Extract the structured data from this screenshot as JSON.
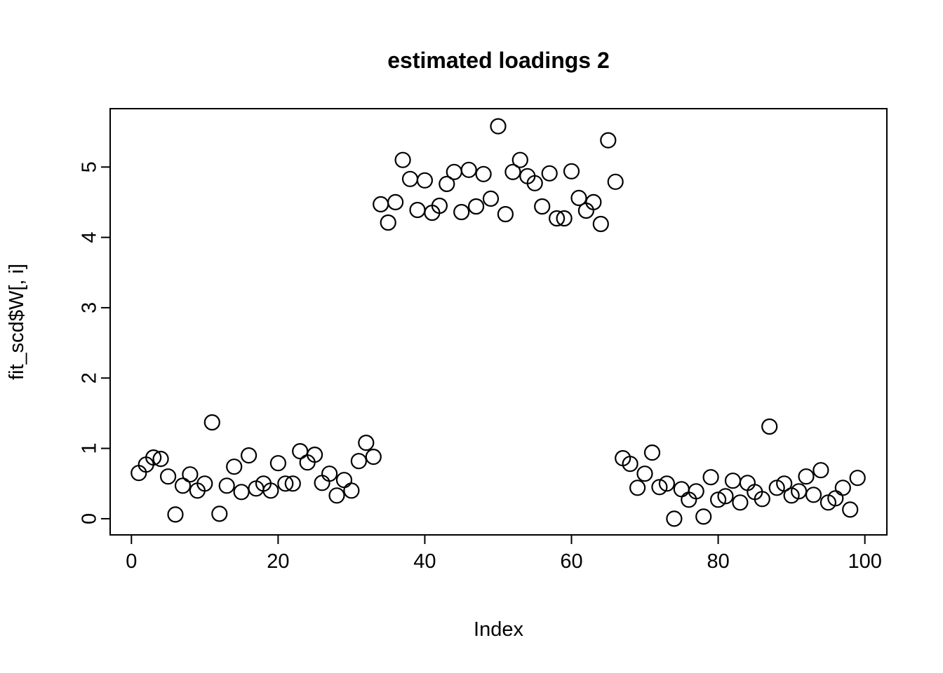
{
  "chart_data": {
    "type": "scatter",
    "title": "estimated loadings 2",
    "xlabel": "Index",
    "ylabel": "fit_scd$W[, i]",
    "marker": "open-circle",
    "marker_color": "#000000",
    "axis_color": "#000000",
    "background_color": "#ffffff",
    "grid": false,
    "legend": null,
    "x_ticks": [
      0,
      20,
      40,
      60,
      80,
      100
    ],
    "y_ticks": [
      0,
      1,
      2,
      3,
      4,
      5
    ],
    "xlim": [
      -2.9,
      103.0
    ],
    "ylim": [
      -0.23,
      5.83
    ],
    "x": [
      1,
      2,
      3,
      4,
      5,
      6,
      7,
      8,
      9,
      10,
      11,
      12,
      13,
      14,
      15,
      16,
      17,
      18,
      19,
      20,
      21,
      22,
      23,
      24,
      25,
      26,
      27,
      28,
      29,
      30,
      31,
      32,
      33,
      34,
      35,
      36,
      37,
      38,
      39,
      40,
      41,
      42,
      43,
      44,
      45,
      46,
      47,
      48,
      49,
      50,
      51,
      52,
      53,
      54,
      55,
      56,
      57,
      58,
      59,
      60,
      61,
      62,
      63,
      64,
      65,
      66,
      67,
      68,
      69,
      70,
      71,
      72,
      73,
      74,
      75,
      76,
      77,
      78,
      79,
      80,
      81,
      82,
      83,
      84,
      85,
      86,
      87,
      88,
      89,
      90,
      91,
      92,
      93,
      94,
      95,
      96,
      97,
      98,
      99
    ],
    "y": [
      0.65,
      0.77,
      0.87,
      0.85,
      0.6,
      0.06,
      0.47,
      0.63,
      0.4,
      0.5,
      1.37,
      0.07,
      0.47,
      0.74,
      0.38,
      0.9,
      0.43,
      0.5,
      0.4,
      0.79,
      0.5,
      0.5,
      0.96,
      0.8,
      0.91,
      0.51,
      0.64,
      0.33,
      0.55,
      0.4,
      0.82,
      1.08,
      0.88,
      4.47,
      4.21,
      4.5,
      5.1,
      4.83,
      4.39,
      4.81,
      4.35,
      4.45,
      4.76,
      4.93,
      4.36,
      4.96,
      4.44,
      4.9,
      4.55,
      5.58,
      4.33,
      4.93,
      5.1,
      4.87,
      4.77,
      4.44,
      4.91,
      4.27,
      4.27,
      4.94,
      4.56,
      4.38,
      4.5,
      4.19,
      5.38,
      4.79,
      0.86,
      0.78,
      0.44,
      0.64,
      0.94,
      0.45,
      0.5,
      0.0,
      0.42,
      0.27,
      0.39,
      0.03,
      0.59,
      0.27,
      0.32,
      0.54,
      0.23,
      0.51,
      0.38,
      0.28,
      1.31,
      0.44,
      0.5,
      0.33,
      0.39,
      0.6,
      0.34,
      0.69,
      0.23,
      0.29,
      0.44,
      0.13,
      0.58
    ]
  }
}
